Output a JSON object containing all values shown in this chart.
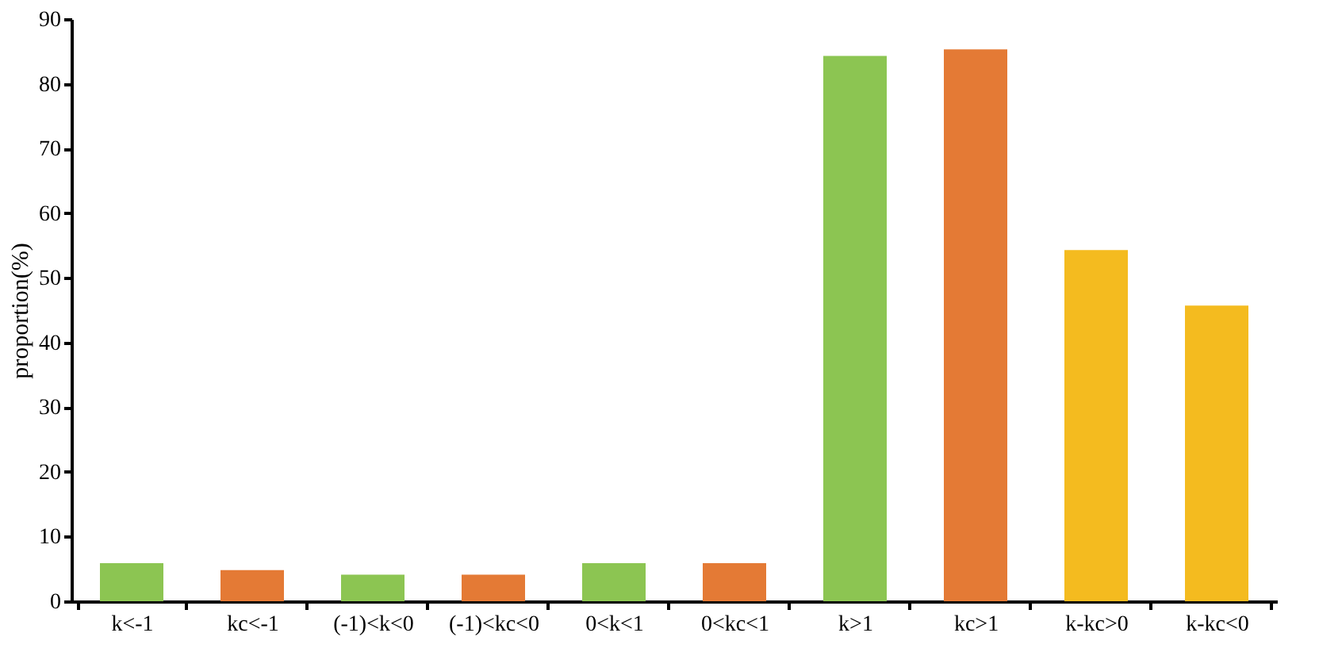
{
  "chart_data": {
    "type": "bar",
    "ylabel": "proportion(%)",
    "categories": [
      "k<-1",
      "kc<-1",
      "(-1)<k<0",
      "(-1)<kc<0",
      "0<k<1",
      "0<kc<1",
      "k>1",
      "kc>1",
      "k-kc>0",
      "k-kc<0"
    ],
    "values": [
      5.9,
      4.8,
      4.1,
      4.1,
      5.9,
      5.9,
      84.3,
      85.3,
      54.3,
      45.7
    ],
    "colors": [
      "#8cc552",
      "#e47a35",
      "#8cc552",
      "#e47a35",
      "#8cc552",
      "#e47a35",
      "#8cc552",
      "#e47a35",
      "#f4bb1f",
      "#f4bb1f"
    ],
    "ylim": [
      0,
      90
    ],
    "yticks": [
      0,
      10,
      20,
      30,
      40,
      50,
      60,
      70,
      80,
      90
    ],
    "grid": false
  }
}
